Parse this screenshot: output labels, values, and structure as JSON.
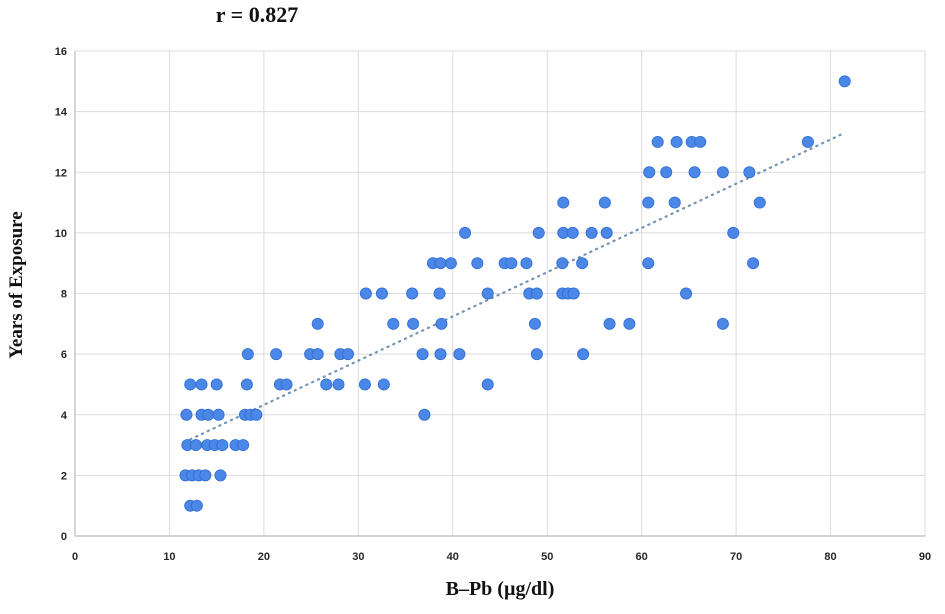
{
  "chart_data": {
    "type": "scatter",
    "title": "r = 0.827",
    "xlabel": "B–Pb (µg/dl)",
    "ylabel": "Years of Exposure",
    "xlim": [
      0,
      90
    ],
    "ylim": [
      0,
      16
    ],
    "xticks": [
      0,
      10,
      20,
      30,
      40,
      50,
      60,
      70,
      80,
      90
    ],
    "yticks": [
      0,
      2,
      4,
      6,
      8,
      10,
      12,
      14,
      16
    ],
    "grid": true,
    "legend": "none",
    "point_color": "#4b87e6",
    "point_stroke": "#2f6cd3",
    "grid_color": "#dcdcdc",
    "axis_color": "#c0c6cc",
    "trend_color": "#7593b3",
    "trendline": {
      "x1": 11.6,
      "y1": 3.1,
      "x2": 81.5,
      "y2": 13.3,
      "style": "dotted"
    },
    "points": [
      [
        12.2,
        1
      ],
      [
        12.9,
        1
      ],
      [
        11.7,
        2
      ],
      [
        12.4,
        2
      ],
      [
        13.1,
        2
      ],
      [
        13.8,
        2
      ],
      [
        15.4,
        2
      ],
      [
        11.9,
        3
      ],
      [
        12.8,
        3
      ],
      [
        14.0,
        3
      ],
      [
        14.8,
        3
      ],
      [
        15.6,
        3
      ],
      [
        17.0,
        3
      ],
      [
        17.8,
        3
      ],
      [
        11.8,
        4
      ],
      [
        13.4,
        4
      ],
      [
        14.1,
        4
      ],
      [
        15.2,
        4
      ],
      [
        18.0,
        4
      ],
      [
        18.6,
        4
      ],
      [
        19.2,
        4
      ],
      [
        37.0,
        4
      ],
      [
        12.2,
        5
      ],
      [
        13.4,
        5
      ],
      [
        15.0,
        5
      ],
      [
        18.2,
        5
      ],
      [
        21.7,
        5
      ],
      [
        22.4,
        5
      ],
      [
        26.6,
        5
      ],
      [
        27.9,
        5
      ],
      [
        30.7,
        5
      ],
      [
        32.7,
        5
      ],
      [
        43.7,
        5
      ],
      [
        18.3,
        6
      ],
      [
        21.3,
        6
      ],
      [
        24.9,
        6
      ],
      [
        25.7,
        6
      ],
      [
        28.1,
        6
      ],
      [
        28.9,
        6
      ],
      [
        36.8,
        6
      ],
      [
        38.7,
        6
      ],
      [
        40.7,
        6
      ],
      [
        48.9,
        6
      ],
      [
        53.8,
        6
      ],
      [
        25.7,
        7
      ],
      [
        33.7,
        7
      ],
      [
        35.8,
        7
      ],
      [
        38.8,
        7
      ],
      [
        48.7,
        7
      ],
      [
        56.6,
        7
      ],
      [
        58.7,
        7
      ],
      [
        68.6,
        7
      ],
      [
        30.8,
        8
      ],
      [
        32.5,
        8
      ],
      [
        35.7,
        8
      ],
      [
        38.6,
        8
      ],
      [
        43.7,
        8
      ],
      [
        48.1,
        8
      ],
      [
        48.9,
        8
      ],
      [
        51.6,
        8
      ],
      [
        52.2,
        8
      ],
      [
        52.8,
        8
      ],
      [
        64.7,
        8
      ],
      [
        37.9,
        9
      ],
      [
        38.7,
        9
      ],
      [
        39.8,
        9
      ],
      [
        42.6,
        9
      ],
      [
        45.5,
        9
      ],
      [
        46.2,
        9
      ],
      [
        47.8,
        9
      ],
      [
        51.6,
        9
      ],
      [
        53.7,
        9
      ],
      [
        60.7,
        9
      ],
      [
        71.8,
        9
      ],
      [
        41.3,
        10
      ],
      [
        49.1,
        10
      ],
      [
        51.7,
        10
      ],
      [
        52.7,
        10
      ],
      [
        54.7,
        10
      ],
      [
        56.3,
        10
      ],
      [
        69.7,
        10
      ],
      [
        51.7,
        11
      ],
      [
        56.1,
        11
      ],
      [
        60.7,
        11
      ],
      [
        63.5,
        11
      ],
      [
        72.5,
        11
      ],
      [
        60.8,
        12
      ],
      [
        62.6,
        12
      ],
      [
        65.6,
        12
      ],
      [
        68.6,
        12
      ],
      [
        71.4,
        12
      ],
      [
        61.7,
        13
      ],
      [
        63.7,
        13
      ],
      [
        65.3,
        13
      ],
      [
        66.2,
        13
      ],
      [
        77.6,
        13
      ],
      [
        81.5,
        15
      ]
    ]
  }
}
